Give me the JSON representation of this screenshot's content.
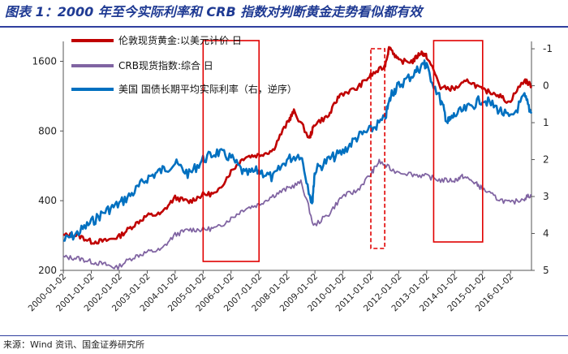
{
  "title": "图表 1：2000 年至今实际利率和 CRB 指数对判断黄金走势看似都有效",
  "source": "来源：Wind 资讯、国金证券研究所",
  "chart_data": {
    "type": "line",
    "title": "图表 1：2000 年至今实际利率和 CRB 指数对判断黄金走势看似都有效",
    "left_axis": {
      "scale": "log",
      "ticks": [
        200,
        400,
        800,
        1600
      ],
      "range": [
        200,
        1950
      ]
    },
    "right_axis": {
      "inverted": true,
      "ticks": [
        -1,
        0,
        1,
        2,
        3,
        4,
        5
      ],
      "range": [
        -1.2,
        5
      ]
    },
    "x_ticks": [
      "2000-01-02",
      "2001-01-02",
      "2002-01-02",
      "2003-01-02",
      "2004-01-02",
      "2005-01-02",
      "2006-01-02",
      "2007-01-02",
      "2008-01-02",
      "2009-01-02",
      "2010-01-02",
      "2011-01-02",
      "2012-01-02",
      "2013-01-02",
      "2014-01-02",
      "2015-01-02",
      "2016-01-02"
    ],
    "x_range": [
      2000.0,
      2016.75
    ],
    "legend_position": "top-left",
    "series": [
      {
        "name": "伦敦现货黄金:以美元计价  日",
        "axis": "left",
        "color": "#c00000",
        "points": [
          [
            2000.0,
            283
          ],
          [
            2000.5,
            284
          ],
          [
            2001.0,
            266
          ],
          [
            2001.5,
            268
          ],
          [
            2002.0,
            280
          ],
          [
            2002.5,
            312
          ],
          [
            2003.0,
            345
          ],
          [
            2003.5,
            350
          ],
          [
            2004.0,
            412
          ],
          [
            2004.5,
            395
          ],
          [
            2005.0,
            425
          ],
          [
            2005.5,
            430
          ],
          [
            2006.0,
            535
          ],
          [
            2006.5,
            620
          ],
          [
            2007.0,
            630
          ],
          [
            2007.5,
            660
          ],
          [
            2008.0,
            860
          ],
          [
            2008.25,
            970
          ],
          [
            2008.8,
            740
          ],
          [
            2009.0,
            860
          ],
          [
            2009.5,
            930
          ],
          [
            2009.9,
            1150
          ],
          [
            2010.5,
            1220
          ],
          [
            2011.0,
            1390
          ],
          [
            2011.5,
            1520
          ],
          [
            2011.67,
            1850
          ],
          [
            2012.0,
            1600
          ],
          [
            2012.5,
            1600
          ],
          [
            2012.8,
            1750
          ],
          [
            2013.0,
            1680
          ],
          [
            2013.5,
            1230
          ],
          [
            2014.0,
            1220
          ],
          [
            2014.5,
            1320
          ],
          [
            2015.0,
            1200
          ],
          [
            2015.5,
            1160
          ],
          [
            2015.95,
            1060
          ],
          [
            2016.5,
            1330
          ],
          [
            2016.75,
            1250
          ]
        ]
      },
      {
        "name": "CRB现货指数:综合  日",
        "axis": "left",
        "color": "#8064a2",
        "points": [
          [
            2000.0,
            228
          ],
          [
            2000.5,
            226
          ],
          [
            2001.0,
            218
          ],
          [
            2001.5,
            212
          ],
          [
            2001.9,
            205
          ],
          [
            2002.5,
            228
          ],
          [
            2003.0,
            240
          ],
          [
            2003.5,
            245
          ],
          [
            2004.0,
            285
          ],
          [
            2004.5,
            300
          ],
          [
            2005.0,
            300
          ],
          [
            2005.5,
            305
          ],
          [
            2006.0,
            335
          ],
          [
            2006.5,
            370
          ],
          [
            2007.0,
            385
          ],
          [
            2007.5,
            420
          ],
          [
            2008.0,
            450
          ],
          [
            2008.5,
            480
          ],
          [
            2008.95,
            310
          ],
          [
            2009.5,
            350
          ],
          [
            2010.0,
            420
          ],
          [
            2010.5,
            440
          ],
          [
            2011.0,
            520
          ],
          [
            2011.3,
            590
          ],
          [
            2011.8,
            540
          ],
          [
            2012.5,
            520
          ],
          [
            2013.0,
            510
          ],
          [
            2013.5,
            490
          ],
          [
            2014.0,
            490
          ],
          [
            2014.3,
            510
          ],
          [
            2014.7,
            480
          ],
          [
            2015.0,
            450
          ],
          [
            2015.5,
            410
          ],
          [
            2016.0,
            390
          ],
          [
            2016.5,
            410
          ],
          [
            2016.75,
            425
          ]
        ]
      },
      {
        "name": "美国 国债长期平均实际利率（右，逆序）",
        "axis": "right",
        "color": "#0070c0",
        "points": [
          [
            2000.0,
            4.2
          ],
          [
            2000.5,
            4.0
          ],
          [
            2001.0,
            3.7
          ],
          [
            2001.5,
            3.4
          ],
          [
            2002.0,
            3.2
          ],
          [
            2002.5,
            2.9
          ],
          [
            2003.0,
            2.5
          ],
          [
            2003.5,
            2.3
          ],
          [
            2004.0,
            2.1
          ],
          [
            2004.5,
            2.4
          ],
          [
            2005.0,
            2.0
          ],
          [
            2005.5,
            1.8
          ],
          [
            2006.0,
            1.95
          ],
          [
            2006.5,
            2.4
          ],
          [
            2007.0,
            2.3
          ],
          [
            2007.5,
            2.5
          ],
          [
            2008.0,
            2.0
          ],
          [
            2008.5,
            1.85
          ],
          [
            2008.9,
            3.2
          ],
          [
            2009.0,
            2.3
          ],
          [
            2009.5,
            2.0
          ],
          [
            2010.0,
            1.8
          ],
          [
            2010.5,
            1.4
          ],
          [
            2011.0,
            1.2
          ],
          [
            2011.5,
            0.9
          ],
          [
            2011.75,
            0.2
          ],
          [
            2012.0,
            0.0
          ],
          [
            2012.5,
            -0.3
          ],
          [
            2012.9,
            -0.6
          ],
          [
            2013.0,
            -0.5
          ],
          [
            2013.5,
            0.4
          ],
          [
            2013.75,
            1.0
          ],
          [
            2014.0,
            0.8
          ],
          [
            2014.5,
            0.6
          ],
          [
            2015.0,
            0.35
          ],
          [
            2015.5,
            0.6
          ],
          [
            2016.0,
            0.9
          ],
          [
            2016.5,
            0.3
          ],
          [
            2016.75,
            0.75
          ]
        ]
      }
    ],
    "highlight_boxes": [
      {
        "from": "2005-01-02",
        "to": "2007-01-02",
        "style": "solid"
      },
      {
        "from": "2011-01-02",
        "to": "2011-07-01",
        "style": "dashed"
      },
      {
        "from": "2013-04-01",
        "to": "2015-01-02",
        "style": "solid"
      }
    ]
  }
}
